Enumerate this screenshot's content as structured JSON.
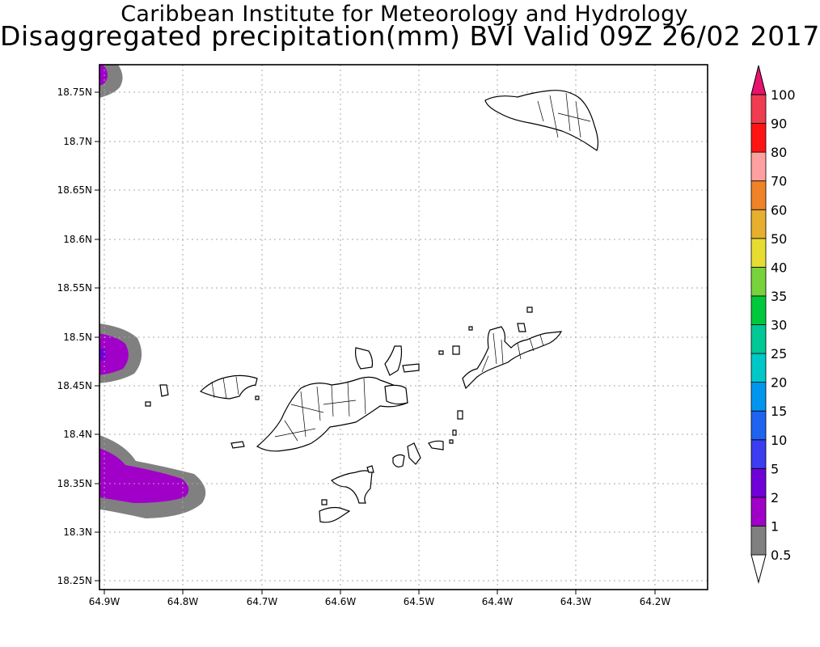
{
  "title": {
    "line1": "Caribbean Institute for Meteorology and Hydrology",
    "line2": "Disaggregated precipitation(mm) BVI Valid 09Z 26/02 2017"
  },
  "map": {
    "lon_range": [
      -64.9,
      -64.14
    ],
    "lat_range": [
      18.24,
      18.79
    ],
    "x_ticks": [
      "64.9W",
      "64.8W",
      "64.7W",
      "64.6W",
      "64.5W",
      "64.4W",
      "64.3W",
      "64.2W"
    ],
    "y_ticks": [
      "18.75N",
      "18.7N",
      "18.65N",
      "18.6N",
      "18.55N",
      "18.5N",
      "18.45N",
      "18.4N",
      "18.35N",
      "18.3N",
      "18.25N"
    ],
    "grid": true,
    "precip_areas": [
      {
        "name": "northwest-corner",
        "band": "1-2"
      },
      {
        "name": "west-middle",
        "band": "1-2"
      },
      {
        "name": "southwest",
        "band": "1-2"
      }
    ]
  },
  "colorbar": {
    "unit": "mm",
    "levels": [
      "0.5",
      "1",
      "2",
      "5",
      "10",
      "15",
      "20",
      "25",
      "30",
      "35",
      "40",
      "50",
      "60",
      "70",
      "80",
      "90",
      "100"
    ],
    "colors": [
      "#ffffff",
      "#808080",
      "#a000c8",
      "#7000d8",
      "#3c3cf0",
      "#1e64f0",
      "#0096f0",
      "#00c8c8",
      "#00c896",
      "#00c83c",
      "#78d23c",
      "#e6dc32",
      "#e6af2d",
      "#f08228",
      "#ffa0a0",
      "#ff1414",
      "#f03c50",
      "#e6146e"
    ]
  }
}
